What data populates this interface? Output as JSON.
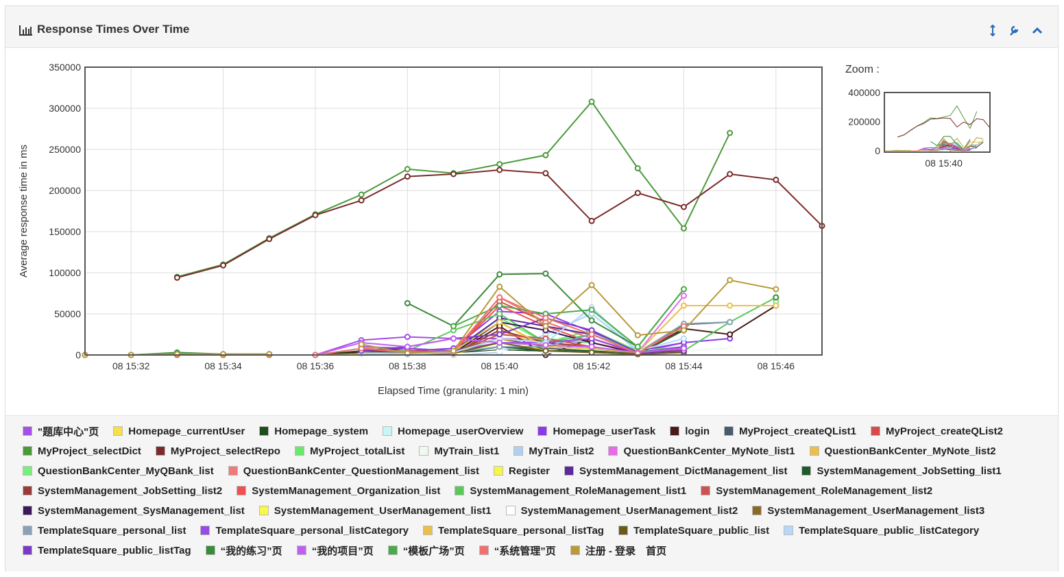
{
  "header": {
    "title": "Response Times Over Time"
  },
  "chart_data": {
    "type": "line",
    "y_label": "Average response time in ms",
    "x_label": "Elapsed Time (granularity: 1 min)",
    "x": [
      "08 15:31",
      "08 15:32",
      "08 15:33",
      "08 15:34",
      "08 15:35",
      "08 15:36",
      "08 15:37",
      "08 15:38",
      "08 15:39",
      "08 15:40",
      "08 15:41",
      "08 15:42",
      "08 15:43",
      "08 15:44",
      "08 15:45",
      "08 15:46",
      "08 15:47"
    ],
    "xlim": [
      "08 15:31",
      "08 15:47"
    ],
    "xticks": [
      "08 15:32",
      "08 15:34",
      "08 15:36",
      "08 15:38",
      "08 15:40",
      "08 15:42",
      "08 15:44",
      "08 15:46"
    ],
    "ylim": [
      0,
      350000
    ],
    "yticks": [
      0,
      50000,
      100000,
      150000,
      200000,
      250000,
      300000,
      350000
    ],
    "grid": true,
    "series": [
      {
        "name": "\"题库中心\"页",
        "color": "#a64ee8",
        "values": [
          null,
          null,
          null,
          null,
          null,
          0,
          18000,
          22000,
          20000,
          20000,
          18000,
          15000,
          3000,
          15000,
          null,
          null,
          null
        ]
      },
      {
        "name": "Homepage_currentUser",
        "color": "#f5e04a",
        "values": [
          0,
          0,
          0,
          0,
          0,
          0,
          2000,
          1000,
          2000,
          40000,
          8000,
          5000,
          2000,
          5000,
          null,
          null,
          null
        ]
      },
      {
        "name": "Homepage_system",
        "color": "#1e4d1e",
        "values": [
          0,
          0,
          0,
          0,
          0,
          0,
          5000,
          3000,
          2000,
          6000,
          5000,
          3000,
          1000,
          3000,
          null,
          null,
          null
        ]
      },
      {
        "name": "Homepage_userOverview",
        "color": "#c8f5f5",
        "values": [
          null,
          null,
          null,
          null,
          null,
          null,
          0,
          0,
          0,
          5000,
          20000,
          55000,
          3000,
          5000,
          null,
          null,
          null
        ]
      },
      {
        "name": "Homepage_userTask",
        "color": "#8a3ae8",
        "values": [
          null,
          null,
          null,
          null,
          null,
          null,
          3000,
          5000,
          8000,
          53000,
          50000,
          28000,
          5000,
          15000,
          20000,
          null,
          null
        ]
      },
      {
        "name": "login",
        "color": "#4a1a1a",
        "values": [
          0,
          0,
          0,
          0,
          0,
          0,
          3000,
          2000,
          1000,
          35000,
          0,
          20000,
          2000,
          32000,
          25000,
          60000,
          null
        ]
      },
      {
        "name": "MyProject_createQList1",
        "color": "#4a5a6a",
        "values": [
          null,
          null,
          null,
          null,
          null,
          null,
          2000,
          1000,
          3000,
          10000,
          8000,
          5000,
          2000,
          37000,
          40000,
          null,
          null
        ]
      },
      {
        "name": "MyProject_createQList2",
        "color": "#d84a4a",
        "values": [
          null,
          null,
          null,
          null,
          null,
          null,
          8000,
          5000,
          4000,
          65000,
          40000,
          20000,
          3000,
          30000,
          null,
          null,
          null
        ]
      },
      {
        "name": "MyProject_selectDict",
        "color": "#4a9a3a",
        "values": [
          null,
          null,
          95000,
          110000,
          142000,
          171000,
          195000,
          226000,
          221000,
          232000,
          243000,
          308000,
          227000,
          154000,
          270000,
          null,
          null
        ]
      },
      {
        "name": "MyProject_selectRepo",
        "color": "#7a2a2a",
        "values": [
          null,
          null,
          94000,
          109000,
          141000,
          170000,
          188000,
          217000,
          220000,
          225000,
          221000,
          163000,
          197000,
          180000,
          220000,
          213000,
          157000
        ]
      },
      {
        "name": "MyProject_totalList",
        "color": "#6ae86a",
        "values": [
          null,
          null,
          null,
          null,
          null,
          null,
          5000,
          3000,
          3000,
          45000,
          15000,
          30000,
          5000,
          10000,
          null,
          65000,
          null
        ]
      },
      {
        "name": "MyTrain_list1",
        "color": "#f0f8f0",
        "values": [
          null,
          null,
          null,
          null,
          null,
          null,
          0,
          0,
          0,
          5000,
          3000,
          5000,
          2000,
          5000,
          8000,
          null,
          null
        ]
      },
      {
        "name": "MyTrain_list2",
        "color": "#b0d0f0",
        "values": [
          null,
          null,
          null,
          null,
          null,
          null,
          0,
          0,
          0,
          3000,
          25000,
          50000,
          5000,
          3000,
          null,
          null,
          null
        ]
      },
      {
        "name": "QuestionBankCenter_MyNote_list1",
        "color": "#e86ae8",
        "values": [
          null,
          null,
          null,
          null,
          null,
          null,
          2000,
          3000,
          5000,
          20000,
          15000,
          10000,
          3000,
          72000,
          null,
          null,
          null
        ]
      },
      {
        "name": "QuestionBankCenter_MyNote_list2",
        "color": "#e8c04a",
        "values": [
          null,
          null,
          null,
          null,
          null,
          null,
          2000,
          1000,
          3000,
          30000,
          10000,
          8000,
          2000,
          10000,
          null,
          null,
          null
        ]
      },
      {
        "name": "QuestionBankCenter_MyQBank_list",
        "color": "#7aee7a",
        "values": [
          null,
          null,
          null,
          null,
          null,
          null,
          3000,
          2000,
          4000,
          25000,
          20000,
          15000,
          3000,
          8000,
          null,
          null,
          null
        ]
      },
      {
        "name": "QuestionBankCenter_QuestionManagement_list",
        "color": "#f07a7a",
        "values": [
          null,
          null,
          null,
          null,
          null,
          null,
          6000,
          4000,
          3000,
          70000,
          40000,
          20000,
          2000,
          10000,
          null,
          null,
          null
        ]
      },
      {
        "name": "Register",
        "color": "#f5f54a",
        "values": [
          0,
          0,
          0,
          0,
          0,
          0,
          1000,
          1000,
          2000,
          20000,
          5000,
          3000,
          1000,
          5000,
          null,
          null,
          null
        ]
      },
      {
        "name": "SystemManagement_DictManagement_list",
        "color": "#5a2a9a",
        "values": [
          null,
          null,
          null,
          null,
          null,
          null,
          5000,
          8000,
          5000,
          45000,
          35000,
          25000,
          3000,
          10000,
          null,
          null,
          null
        ]
      },
      {
        "name": "SystemManagement_JobSetting_list1",
        "color": "#1e5a2a",
        "values": [
          null,
          null,
          null,
          null,
          null,
          null,
          2000,
          1000,
          1000,
          10000,
          5000,
          5000,
          1000,
          30000,
          null,
          null,
          null
        ]
      },
      {
        "name": "SystemManagement_JobSetting_list2",
        "color": "#9a3a3a",
        "values": [
          null,
          null,
          null,
          null,
          null,
          null,
          3000,
          2000,
          2000,
          30000,
          15000,
          10000,
          2000,
          5000,
          null,
          null,
          null
        ]
      },
      {
        "name": "SystemManagement_Organization_list",
        "color": "#f05050",
        "values": [
          null,
          null,
          null,
          null,
          null,
          null,
          6000,
          3000,
          4000,
          60000,
          35000,
          15000,
          3000,
          5000,
          null,
          null,
          null
        ]
      },
      {
        "name": "SystemManagement_RoleManagement_list1",
        "color": "#5ac85a",
        "values": [
          null,
          null,
          null,
          null,
          null,
          null,
          3000,
          5000,
          30000,
          50000,
          15000,
          25000,
          5000,
          5000,
          40000,
          70000,
          null
        ]
      },
      {
        "name": "SystemManagement_RoleManagement_list2",
        "color": "#d05050",
        "values": [
          null,
          null,
          null,
          null,
          null,
          null,
          4000,
          2000,
          3000,
          25000,
          20000,
          10000,
          2000,
          6000,
          null,
          null,
          null
        ]
      },
      {
        "name": "SystemManagement_SysManagement_list",
        "color": "#3a1a5a",
        "values": [
          null,
          null,
          null,
          null,
          null,
          null,
          5000,
          3000,
          2000,
          40000,
          30000,
          15000,
          2000,
          3000,
          null,
          null,
          null
        ]
      },
      {
        "name": "SystemManagement_UserManagement_list1",
        "color": "#f8f84a",
        "values": [
          null,
          null,
          null,
          null,
          null,
          null,
          1000,
          1000,
          1000,
          15000,
          5000,
          3000,
          1000,
          3000,
          null,
          null,
          null
        ]
      },
      {
        "name": "SystemManagement_UserManagement_list2",
        "color": "#ffffff",
        "values": [
          null,
          null,
          null,
          null,
          null,
          null,
          0,
          0,
          1000,
          5000,
          3000,
          2000,
          1000,
          2000,
          5000,
          null,
          null
        ]
      },
      {
        "name": "SystemManagement_UserManagement_list3",
        "color": "#8a6a2a",
        "values": [
          null,
          null,
          null,
          null,
          null,
          null,
          4000,
          3000,
          5000,
          20000,
          10000,
          8000,
          2000,
          8000,
          null,
          null,
          null
        ]
      },
      {
        "name": "TemplateSquare_personal_list",
        "color": "#8aa0b8",
        "values": [
          null,
          null,
          null,
          null,
          null,
          null,
          3000,
          2000,
          3000,
          10000,
          10000,
          25000,
          3000,
          38000,
          40000,
          null,
          null
        ]
      },
      {
        "name": "TemplateSquare_personal_listCategory",
        "color": "#9a4ae8",
        "values": [
          null,
          null,
          null,
          null,
          null,
          null,
          10000,
          8000,
          5000,
          15000,
          15000,
          20000,
          3000,
          10000,
          null,
          null,
          null
        ]
      },
      {
        "name": "TemplateSquare_personal_listTag",
        "color": "#e8c04a",
        "values": [
          null,
          null,
          null,
          null,
          null,
          null,
          null,
          null,
          5000,
          40000,
          10000,
          8000,
          3000,
          60000,
          60000,
          60000,
          null
        ]
      },
      {
        "name": "TemplateSquare_public_list",
        "color": "#6a5a1a",
        "values": [
          null,
          null,
          null,
          null,
          null,
          null,
          2000,
          1000,
          2000,
          15000,
          5000,
          3000,
          1000,
          3000,
          null,
          null,
          null
        ]
      },
      {
        "name": "TemplateSquare_public_listCategory",
        "color": "#b8d8f8",
        "values": [
          null,
          null,
          null,
          null,
          null,
          null,
          2000,
          1000,
          3000,
          20000,
          15000,
          58000,
          5000,
          20000,
          null,
          null,
          null
        ]
      },
      {
        "name": "TemplateSquare_public_listTag",
        "color": "#7a3ac8",
        "values": [
          null,
          null,
          null,
          null,
          null,
          null,
          5000,
          10000,
          20000,
          25000,
          45000,
          30000,
          3000,
          5000,
          null,
          null,
          null
        ]
      },
      {
        "name": "“我的练习”页",
        "color": "#3a8a3a",
        "values": [
          0,
          0,
          3000,
          1000,
          1000,
          null,
          null,
          63000,
          35000,
          98000,
          99000,
          42000,
          10000,
          80000,
          null,
          70000,
          null
        ]
      },
      {
        "name": "“我的项目”页",
        "color": "#c060f0",
        "values": [
          0,
          0,
          0,
          0,
          0,
          0,
          15000,
          10000,
          20000,
          15000,
          12000,
          10000,
          3000,
          8000,
          null,
          null,
          null
        ]
      },
      {
        "name": "“模板广场”页",
        "color": "#4aaa4a",
        "values": [
          0,
          0,
          2000,
          1000,
          1000,
          null,
          null,
          null,
          35000,
          60000,
          50000,
          55000,
          10000,
          80000,
          null,
          null,
          null
        ]
      },
      {
        "name": "“系统管理”页",
        "color": "#f07070",
        "values": [
          0,
          0,
          0,
          0,
          0,
          0,
          8000,
          3000,
          4000,
          70000,
          45000,
          25000,
          2000,
          35000,
          null,
          null,
          null
        ]
      },
      {
        "name": "注册 - 登录　首页",
        "color": "#b89a3a",
        "values": [
          0,
          0,
          1000,
          1000,
          1000,
          null,
          13000,
          2000,
          5000,
          83000,
          35000,
          85000,
          24000,
          30000,
          91000,
          80000,
          null
        ]
      }
    ],
    "zoom": {
      "label": "Zoom :",
      "ylim": [
        0,
        400000
      ],
      "yticks": [
        0,
        200000,
        400000
      ],
      "xticks": [
        "08 15:40"
      ]
    }
  }
}
